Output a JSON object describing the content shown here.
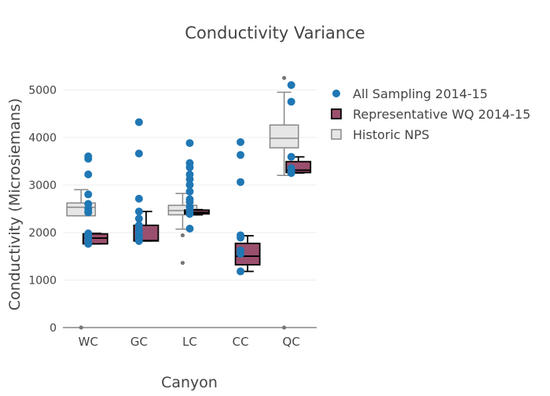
{
  "chart_data": {
    "type": "box",
    "title": "Conductivity Variance",
    "xlabel": "Canyon",
    "ylabel": "Conductivity (Microsiemans)",
    "ylim": [
      -350,
      5650
    ],
    "yticks": [
      0,
      1000,
      2000,
      3000,
      4000,
      5000
    ],
    "categories": [
      "WC",
      "GC",
      "LC",
      "CC",
      "QC"
    ],
    "legend_position": "top-right",
    "colors": {
      "points": "#1f77b4",
      "rep_fill": "#9b4f6e",
      "rep_line": "#000000",
      "hist_fill": "#e6e6e6",
      "hist_line": "#888888",
      "outlier": "#777777",
      "grid": "#eeeeee",
      "axis": "#888888"
    },
    "legend": [
      {
        "name": "All Sampling 2014-15",
        "kind": "marker"
      },
      {
        "name": "Representative WQ 2014-15",
        "kind": "box-rep"
      },
      {
        "name": "Historic NPS",
        "kind": "box-hist"
      }
    ],
    "historic_nps": [
      {
        "category": "WC",
        "min": 2350,
        "q1": 2350,
        "median": 2530,
        "q3": 2620,
        "max": 2900,
        "outliers": [
          0
        ]
      },
      {
        "category": "GC",
        "min": null,
        "q1": null,
        "median": null,
        "q3": null,
        "max": null,
        "outliers": []
      },
      {
        "category": "LC",
        "min": 2070,
        "q1": 2370,
        "median": 2460,
        "q3": 2570,
        "max": 2820,
        "outliers": [
          1940,
          1360
        ]
      },
      {
        "category": "CC",
        "min": null,
        "q1": null,
        "median": null,
        "q3": null,
        "max": null,
        "outliers": []
      },
      {
        "category": "QC",
        "min": 3200,
        "q1": 3780,
        "median": 3980,
        "q3": 4260,
        "max": 4950,
        "outliers": [
          5250,
          0
        ]
      }
    ],
    "representative_wq": [
      {
        "category": "WC",
        "min": 1760,
        "q1": 1760,
        "median": 1880,
        "q3": 1970,
        "max": 1980
      },
      {
        "category": "GC",
        "min": 1820,
        "q1": 1820,
        "median": 1830,
        "q3": 2150,
        "max": 2440
      },
      {
        "category": "LC",
        "min": 2370,
        "q1": 2390,
        "median": 2420,
        "q3": 2470,
        "max": 2480
      },
      {
        "category": "CC",
        "min": 1180,
        "q1": 1320,
        "median": 1500,
        "q3": 1770,
        "max": 1930
      },
      {
        "category": "QC",
        "min": 3250,
        "q1": 3260,
        "median": 3310,
        "q3": 3490,
        "max": 3590
      }
    ],
    "all_sampling": [
      {
        "category": "WC",
        "values": [
          3600,
          3550,
          3220,
          2800,
          2600,
          2500,
          2440,
          2420,
          1980,
          1940,
          1880,
          1800,
          1760
        ]
      },
      {
        "category": "GC",
        "values": [
          4320,
          3660,
          2710,
          2440,
          2290,
          2150,
          2040,
          1950,
          1890,
          1820
        ]
      },
      {
        "category": "LC",
        "values": [
          3880,
          3460,
          3370,
          3220,
          3120,
          3000,
          2860,
          2700,
          2640,
          2540,
          2460,
          2390,
          2080
        ]
      },
      {
        "category": "CC",
        "values": [
          3900,
          3630,
          3060,
          1940,
          1890,
          1620,
          1550,
          1180
        ]
      },
      {
        "category": "QC",
        "values": [
          5100,
          4750,
          3590,
          3350,
          3290,
          3250
        ]
      }
    ]
  }
}
